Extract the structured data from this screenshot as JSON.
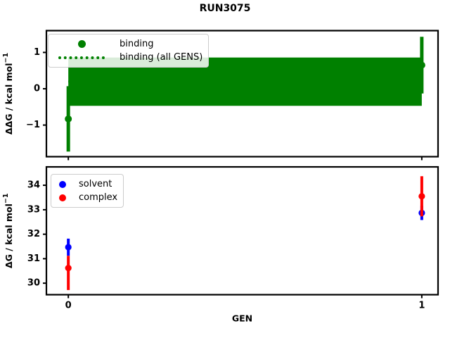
{
  "figure": {
    "title": "RUN3075",
    "background": "#ffffff"
  },
  "chart_data": [
    {
      "type": "scatter",
      "subplot": "top",
      "title": "",
      "xlabel": "",
      "ylabel": {
        "text": "ΔΔG / kcal mol",
        "sup": "−1"
      },
      "xlim": [
        -0.062,
        1.046
      ],
      "ylim": [
        -1.87,
        1.6
      ],
      "grid": false,
      "yticks": [
        {
          "v": -1,
          "label": "−1"
        },
        {
          "v": 0,
          "label": "0"
        },
        {
          "v": 1,
          "label": "1"
        }
      ],
      "xticks": [
        {
          "v": 0,
          "label": ""
        },
        {
          "v": 1,
          "label": ""
        }
      ],
      "band": {
        "label": "binding (all GENS)",
        "x_from": 0,
        "x_to": 1,
        "lo": -0.47,
        "hi": 0.86,
        "center": 0.2,
        "color": "#008000",
        "linestyle": "dotted"
      },
      "series": [
        {
          "name": "binding",
          "color": "#008000",
          "marker": "circle",
          "points": [
            {
              "x": 0,
              "y": -0.83,
              "err_lo": -1.73,
              "err_hi": 0.07
            },
            {
              "x": 1,
              "y": 0.65,
              "err_lo": -0.13,
              "err_hi": 1.43
            }
          ]
        }
      ],
      "legend": {
        "loc": "upper-left",
        "entries": [
          {
            "label": "binding",
            "handle": "marker",
            "color": "#008000"
          },
          {
            "label": "binding (all GENS)",
            "handle": "dotted-line",
            "color": "#008000"
          }
        ]
      }
    },
    {
      "type": "scatter",
      "subplot": "bottom",
      "title": "",
      "xlabel": "GEN",
      "ylabel": {
        "text": "ΔG / kcal mol",
        "sup": "−1"
      },
      "xlim": [
        -0.062,
        1.046
      ],
      "ylim": [
        29.53,
        34.75
      ],
      "grid": false,
      "yticks": [
        {
          "v": 30,
          "label": "30"
        },
        {
          "v": 31,
          "label": "31"
        },
        {
          "v": 32,
          "label": "32"
        },
        {
          "v": 33,
          "label": "33"
        },
        {
          "v": 34,
          "label": "34"
        }
      ],
      "xticks": [
        {
          "v": 0,
          "label": "0"
        },
        {
          "v": 1,
          "label": "1"
        }
      ],
      "series": [
        {
          "name": "solvent",
          "color": "#0000ff",
          "marker": "circle",
          "points": [
            {
              "x": 0,
              "y": 31.47,
              "err_lo": 31.12,
              "err_hi": 31.82
            },
            {
              "x": 1,
              "y": 32.87,
              "err_lo": 32.58,
              "err_hi": 33.16
            }
          ]
        },
        {
          "name": "complex",
          "color": "#ff0000",
          "marker": "circle",
          "points": [
            {
              "x": 0,
              "y": 30.62,
              "err_lo": 29.72,
              "err_hi": 31.12
            },
            {
              "x": 1,
              "y": 33.55,
              "err_lo": 32.73,
              "err_hi": 34.37
            }
          ]
        }
      ],
      "legend": {
        "loc": "upper-left",
        "entries": [
          {
            "label": "solvent",
            "handle": "marker",
            "color": "#0000ff"
          },
          {
            "label": "complex",
            "handle": "marker",
            "color": "#ff0000"
          }
        ]
      }
    }
  ]
}
